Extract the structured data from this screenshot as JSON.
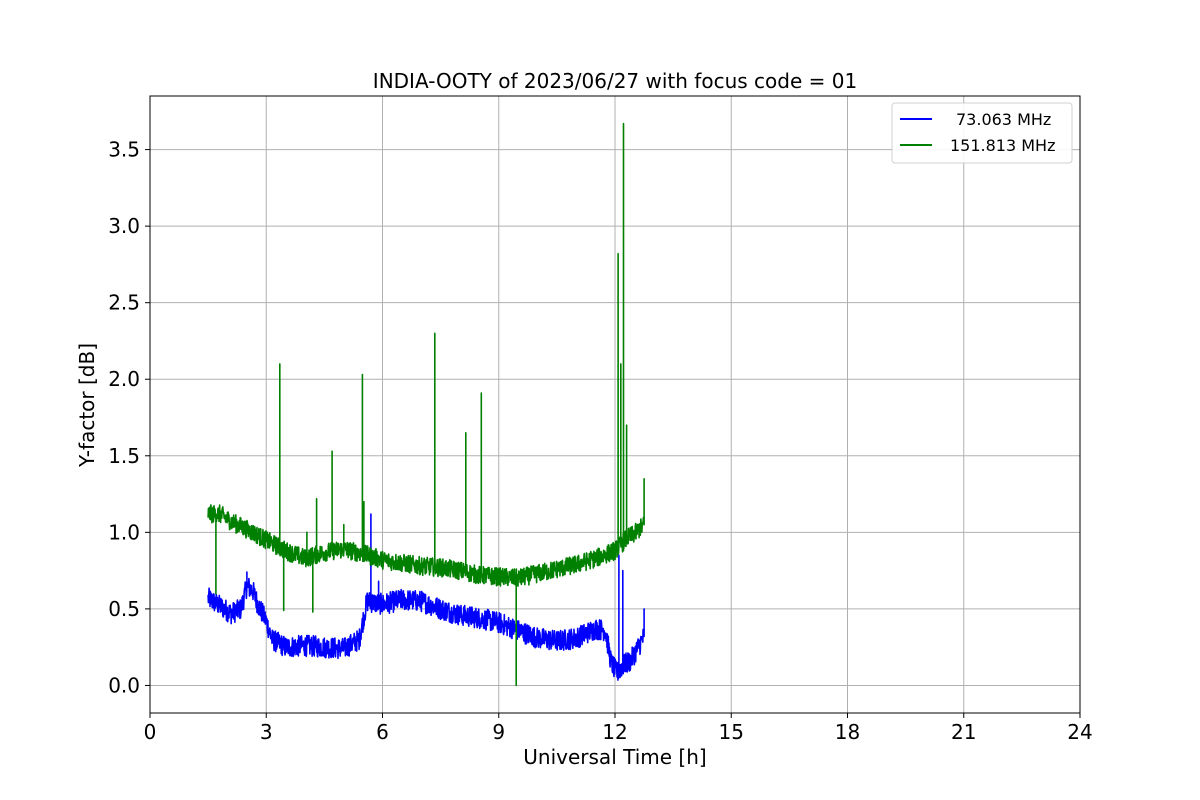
{
  "chart_data": {
    "type": "line",
    "title": "INDIA-OOTY of 2023/06/27 with focus code = 01",
    "xlabel": "Universal Time [h]",
    "ylabel": "Y-factor [dB]",
    "xlim": [
      0,
      24
    ],
    "ylim": [
      -0.18,
      3.85
    ],
    "xticks": [
      0,
      3,
      6,
      9,
      12,
      15,
      18,
      21,
      24
    ],
    "xtick_labels": [
      "0",
      "3",
      "6",
      "9",
      "12",
      "15",
      "18",
      "21",
      "24"
    ],
    "yticks": [
      0.0,
      0.5,
      1.0,
      1.5,
      2.0,
      2.5,
      3.0,
      3.5
    ],
    "ytick_labels": [
      "0.0",
      "0.5",
      "1.0",
      "1.5",
      "2.0",
      "2.5",
      "3.0",
      "3.5"
    ],
    "grid": true,
    "legend_position": "top-right",
    "series": [
      {
        "name": "73.063 MHz",
        "color": "#0000ff",
        "baseline": [
          [
            1.5,
            0.57
          ],
          [
            1.8,
            0.52
          ],
          [
            2.1,
            0.47
          ],
          [
            2.35,
            0.5
          ],
          [
            2.5,
            0.65
          ],
          [
            2.65,
            0.62
          ],
          [
            2.8,
            0.52
          ],
          [
            3.0,
            0.42
          ],
          [
            3.15,
            0.3
          ],
          [
            3.5,
            0.25
          ],
          [
            4.0,
            0.26
          ],
          [
            4.5,
            0.25
          ],
          [
            5.0,
            0.24
          ],
          [
            5.4,
            0.3
          ],
          [
            5.6,
            0.55
          ],
          [
            6.0,
            0.53
          ],
          [
            6.5,
            0.56
          ],
          [
            7.0,
            0.55
          ],
          [
            7.5,
            0.5
          ],
          [
            8.0,
            0.46
          ],
          [
            8.5,
            0.44
          ],
          [
            9.0,
            0.41
          ],
          [
            9.5,
            0.36
          ],
          [
            10.0,
            0.31
          ],
          [
            10.5,
            0.29
          ],
          [
            11.0,
            0.31
          ],
          [
            11.5,
            0.37
          ],
          [
            11.75,
            0.36
          ],
          [
            11.9,
            0.15
          ],
          [
            12.05,
            0.08
          ],
          [
            12.2,
            0.13
          ],
          [
            12.4,
            0.16
          ],
          [
            12.6,
            0.25
          ],
          [
            12.75,
            0.32
          ]
        ],
        "spikes": [
          [
            5.7,
            1.12
          ],
          [
            12.1,
            0.85
          ],
          [
            12.2,
            0.75
          ],
          [
            12.75,
            0.5
          ],
          [
            2.5,
            0.74
          ],
          [
            5.9,
            0.68
          ]
        ]
      },
      {
        "name": "151.813 MHz",
        "color": "#008000",
        "baseline": [
          [
            1.5,
            1.12
          ],
          [
            1.8,
            1.12
          ],
          [
            2.1,
            1.07
          ],
          [
            2.5,
            1.02
          ],
          [
            3.0,
            0.95
          ],
          [
            3.5,
            0.88
          ],
          [
            4.0,
            0.83
          ],
          [
            4.5,
            0.87
          ],
          [
            5.0,
            0.89
          ],
          [
            5.5,
            0.86
          ],
          [
            6.0,
            0.82
          ],
          [
            6.5,
            0.8
          ],
          [
            7.0,
            0.78
          ],
          [
            7.5,
            0.77
          ],
          [
            8.0,
            0.75
          ],
          [
            8.5,
            0.72
          ],
          [
            9.0,
            0.71
          ],
          [
            9.5,
            0.7
          ],
          [
            10.0,
            0.73
          ],
          [
            10.5,
            0.76
          ],
          [
            11.0,
            0.79
          ],
          [
            11.5,
            0.83
          ],
          [
            12.0,
            0.88
          ],
          [
            12.3,
            0.96
          ],
          [
            12.5,
            0.99
          ],
          [
            12.75,
            1.05
          ]
        ],
        "spikes": [
          [
            3.35,
            2.1
          ],
          [
            3.45,
            0.49
          ],
          [
            4.05,
            1.0
          ],
          [
            4.2,
            0.48
          ],
          [
            4.3,
            1.22
          ],
          [
            4.7,
            1.53
          ],
          [
            5.0,
            1.05
          ],
          [
            5.48,
            2.03
          ],
          [
            5.52,
            1.2
          ],
          [
            7.35,
            2.3
          ],
          [
            8.15,
            1.65
          ],
          [
            8.55,
            1.91
          ],
          [
            9.45,
            0.0
          ],
          [
            12.08,
            2.82
          ],
          [
            12.22,
            3.67
          ],
          [
            12.15,
            2.1
          ],
          [
            12.3,
            1.7
          ],
          [
            12.75,
            1.35
          ],
          [
            1.7,
            0.6
          ]
        ]
      }
    ]
  }
}
